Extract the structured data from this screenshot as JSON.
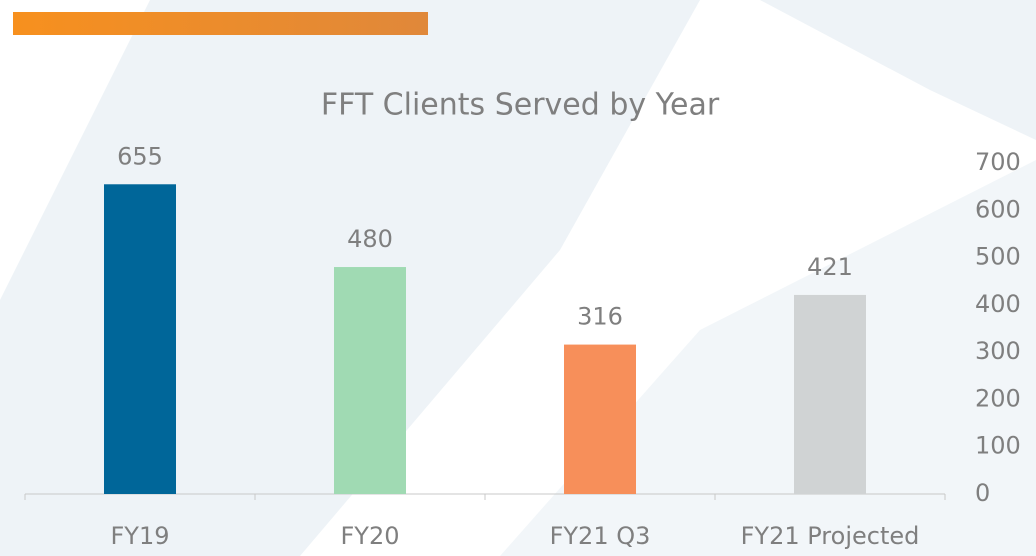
{
  "chart_data": {
    "type": "bar",
    "title": "FFT Clients Served by Year",
    "categories": [
      "FY19",
      "FY20",
      "FY21 Q3",
      "FY21 Projected"
    ],
    "values": [
      655,
      480,
      316,
      421
    ],
    "colors": [
      "#006699",
      "#a0dab3",
      "#f78f5a",
      "#d0d3d4"
    ],
    "ylim": [
      0,
      700
    ],
    "yticks": [
      0,
      100,
      200,
      300,
      400,
      500,
      600,
      700
    ],
    "y_axis_side": "right",
    "grid": false
  }
}
